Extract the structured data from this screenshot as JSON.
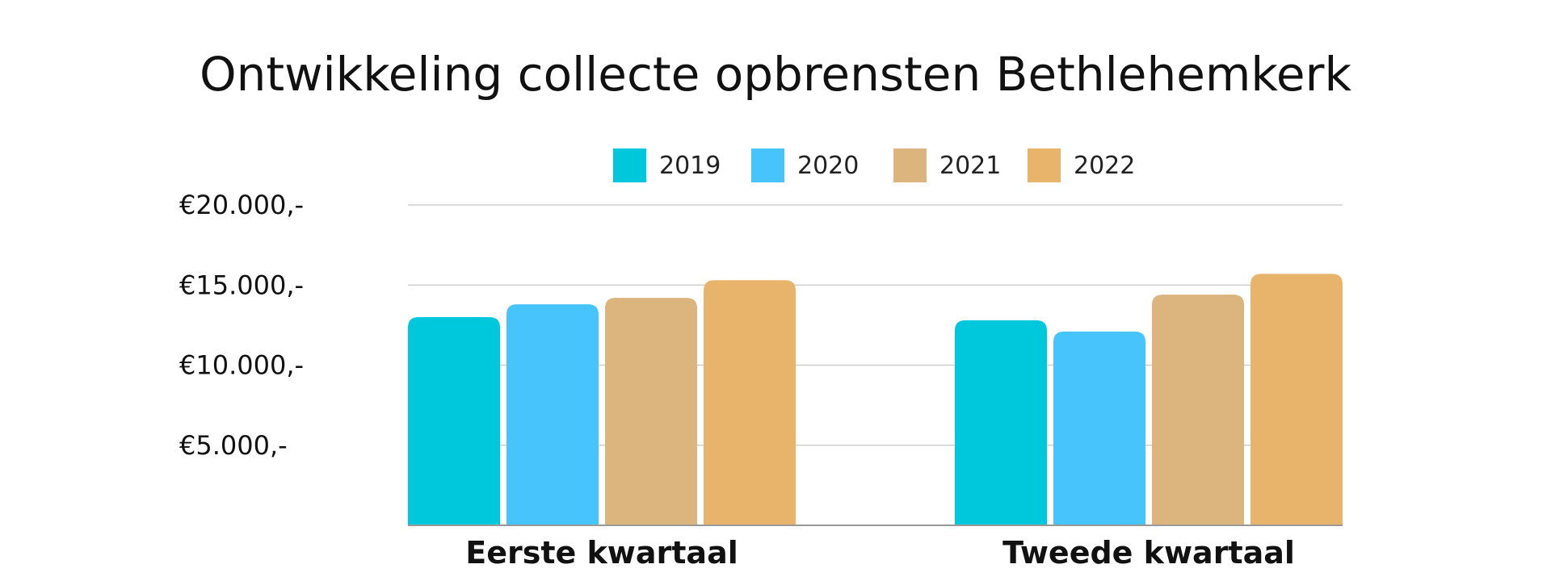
{
  "chart_data": {
    "type": "bar",
    "title": "Ontwikkeling collecte opbrensten Bethlehemkerk",
    "categories": [
      "Eerste kwartaal",
      "Tweede kwartaal"
    ],
    "series": [
      {
        "name": "2019",
        "color": "#00c8dc",
        "values": [
          13000,
          12800
        ]
      },
      {
        "name": "2020",
        "color": "#48c4fd",
        "values": [
          13800,
          12100
        ]
      },
      {
        "name": "2021",
        "color": "#dcb47e",
        "values": [
          14200,
          14400
        ]
      },
      {
        "name": "2022",
        "color": "#e8b46c",
        "values": [
          15300,
          15700
        ]
      }
    ],
    "ylim": [
      0,
      20000
    ],
    "yticks": [
      {
        "value": 5000,
        "label": "€5.000,-"
      },
      {
        "value": 10000,
        "label": "€10.000,-"
      },
      {
        "value": 15000,
        "label": "€15.000,-"
      },
      {
        "value": 20000,
        "label": "€20.000,-"
      }
    ],
    "grid": true,
    "legend_position": "top"
  }
}
